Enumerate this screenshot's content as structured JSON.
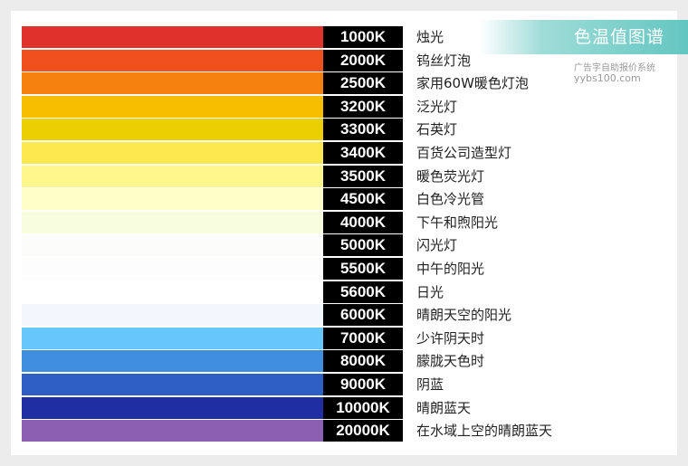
{
  "banner": {
    "title": "色温值图谱",
    "color": "#63c6c0"
  },
  "watermark": {
    "line1": "广告字自助报价系统",
    "line2": "yybs100.com"
  },
  "rows": [
    {
      "temp": "1000K",
      "desc": "烛光",
      "color": "#e0312d"
    },
    {
      "temp": "2000K",
      "desc": "钨丝灯泡",
      "color": "#f0501c"
    },
    {
      "temp": "2500K",
      "desc": "家用60W暖色灯泡",
      "color": "#f5820f"
    },
    {
      "temp": "3200K",
      "desc": "泛光灯",
      "color": "#f7be00"
    },
    {
      "temp": "3300K",
      "desc": "石英灯",
      "color": "#eccf00"
    },
    {
      "temp": "3400K",
      "desc": "百货公司造型灯",
      "color": "#fde84f"
    },
    {
      "temp": "3500K",
      "desc": "暖色荧光灯",
      "color": "#fef88c"
    },
    {
      "temp": "4500K",
      "desc": "白色冷光管",
      "color": "#fffdc8"
    },
    {
      "temp": "4000K",
      "desc": "下午和煦阳光",
      "color": "#f9fde0"
    },
    {
      "temp": "5000K",
      "desc": "闪光灯",
      "color": "#fcfcfb"
    },
    {
      "temp": "5500K",
      "desc": "中午的阳光",
      "color": "#fdfdfd"
    },
    {
      "temp": "5600K",
      "desc": "日光",
      "color": "#ffffff"
    },
    {
      "temp": "6000K",
      "desc": "晴朗天空的阳光",
      "color": "#f1f7fd"
    },
    {
      "temp": "7000K",
      "desc": "少许阴天时",
      "color": "#66c8fa"
    },
    {
      "temp": "8000K",
      "desc": "朦胧天色时",
      "color": "#3f8ee0"
    },
    {
      "temp": "9000K",
      "desc": "阴蓝",
      "color": "#2e5fc5"
    },
    {
      "temp": "10000K",
      "desc": "晴朗蓝天",
      "color": "#1f2fa3"
    },
    {
      "temp": "20000K",
      "desc": "在水域上空的晴朗蓝天",
      "color": "#8d5fb3"
    }
  ]
}
